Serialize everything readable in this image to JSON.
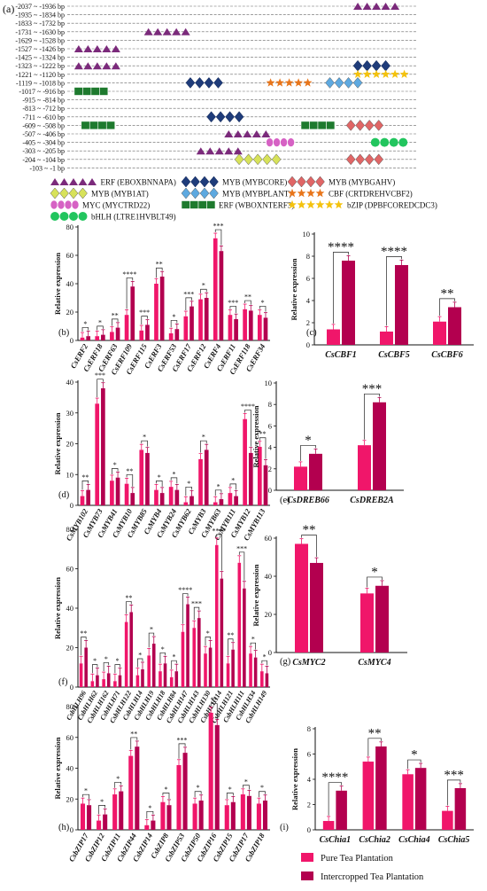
{
  "figure_label": "(a)",
  "promoter": {
    "rows": [
      "-2037 ~ -1936 bp",
      "-1935 ~ -1834 bp",
      "-1833 ~ -1732 bp",
      "-1731 ~ -1630 bp",
      "-1629 ~ -1528 bp",
      "-1527 ~ -1426 bp",
      "-1425 ~ -1324 bp",
      "-1323 ~ -1222 bp",
      "-1221 ~ -1120 bp",
      "-1119 ~ -1018 bp",
      "-1017 ~ -916 bp",
      "-915 ~ -814 bp",
      "-813 ~ -712 bp",
      "-711 ~ -610 bp",
      "-609 ~ -508 bp",
      "-507 ~ -406 bp",
      "-405 ~ -304 bp",
      "-303 ~ -205 bp",
      "-204 ~ -104 bp",
      "-103 ~ -1 bp"
    ],
    "elements": [
      {
        "row": 0,
        "type": "erf",
        "start": 0.82,
        "count": 5
      },
      {
        "row": 3,
        "type": "erf",
        "start": 0.22,
        "count": 5
      },
      {
        "row": 5,
        "type": "erf",
        "start": 0.02,
        "count": 5
      },
      {
        "row": 7,
        "type": "erf",
        "start": 0.02,
        "count": 5
      },
      {
        "row": 7,
        "type": "mybcore",
        "start": 0.82,
        "count": 4
      },
      {
        "row": 8,
        "type": "bzip",
        "start": 0.82,
        "count": 6
      },
      {
        "row": 9,
        "type": "mybcore",
        "start": 0.34,
        "count": 4
      },
      {
        "row": 9,
        "type": "cbf",
        "start": 0.57,
        "count": 5
      },
      {
        "row": 9,
        "type": "mybplant",
        "start": 0.74,
        "count": 4
      },
      {
        "row": 10,
        "type": "wbox",
        "start": 0.02,
        "count": 4
      },
      {
        "row": 13,
        "type": "mybcore",
        "start": 0.4,
        "count": 4
      },
      {
        "row": 14,
        "type": "wbox",
        "start": 0.04,
        "count": 4
      },
      {
        "row": 14,
        "type": "wbox",
        "start": 0.67,
        "count": 4
      },
      {
        "row": 14,
        "type": "mybgahv",
        "start": 0.8,
        "count": 4
      },
      {
        "row": 15,
        "type": "erf",
        "start": 0.45,
        "count": 5
      },
      {
        "row": 16,
        "type": "myc",
        "start": 0.57,
        "count": 4
      },
      {
        "row": 16,
        "type": "bhlh",
        "start": 0.87,
        "count": 4
      },
      {
        "row": 17,
        "type": "erf",
        "start": 0.37,
        "count": 5
      },
      {
        "row": 18,
        "type": "myb1at",
        "start": 0.48,
        "count": 5
      },
      {
        "row": 18,
        "type": "mybgahv",
        "start": 0.8,
        "count": 4
      }
    ],
    "legend": [
      {
        "type": "erf",
        "label": "ERF (EBOXBNNAPA)"
      },
      {
        "type": "mybcore",
        "label": "MYB (MYBCORE)"
      },
      {
        "type": "mybgahv",
        "label": "MYB (MYBGAHV)"
      },
      {
        "type": "myb1at",
        "label": "MYB (MYB1AT)"
      },
      {
        "type": "mybplant",
        "label": "MYB (MYBPLANT)"
      },
      {
        "type": "cbf",
        "label": "CBF (CRTDREHVCBF2)"
      },
      {
        "type": "myc",
        "label": "MYC (MYCTRD22)"
      },
      {
        "type": "wbox",
        "label": "ERF (WBOXNTERF3)"
      },
      {
        "type": "bzip",
        "label": "bZIP (DPBFCOREDCDC3)"
      },
      {
        "type": "bhlh",
        "label": "bHLH (LTRE1HVBLT49)"
      }
    ],
    "colors": {
      "erf": "#7b2a7b",
      "mybcore": "#1f3c7a",
      "mybgahv": "#e06666",
      "myb1at": "#d7e25a",
      "mybplant": "#5ea9e0",
      "cbf": "#e8751a",
      "myc": "#d662c4",
      "wbox": "#1e7a2e",
      "bzip": "#f4c20d",
      "bhlh": "#22c55e"
    }
  },
  "series_colors": {
    "pure": "#f0166a",
    "inter": "#b3004f"
  },
  "legend": {
    "pure": "Pure Tea Plantation",
    "inter": "Intercropped Tea Plantation"
  },
  "ylabel": "Relative expression",
  "chart_data": [
    {
      "id": "b",
      "label": "(b)",
      "type": "bar",
      "ylim": [
        0,
        80
      ],
      "yticks": [
        0,
        20,
        40,
        60,
        80
      ],
      "categories": [
        "CsERF2",
        "CsERF18",
        "CsERF63",
        "CsERF109",
        "CsERF115",
        "CsERF3",
        "CsERF53",
        "CsERF17",
        "CsERF12",
        "CsERF4",
        "CsERF11",
        "CsERF118",
        "CsERF34"
      ],
      "series": [
        {
          "values": [
            2,
            3,
            6,
            18,
            7,
            40,
            5,
            17,
            29,
            72,
            18,
            22,
            18
          ]
        },
        {
          "values": [
            3,
            4,
            9,
            38,
            11,
            45,
            8,
            24,
            30,
            63,
            15,
            21,
            16
          ]
        }
      ],
      "sig": [
        "*",
        "*",
        "**",
        "****",
        "***",
        "**",
        "*",
        "***",
        "*",
        "***",
        "***",
        "**",
        "*"
      ]
    },
    {
      "id": "c",
      "label": "(c)",
      "type": "bar",
      "ylim": [
        0,
        10
      ],
      "yticks": [
        0,
        2,
        4,
        6,
        8,
        10
      ],
      "categories": [
        "CsCBF1",
        "CsCBF5",
        "CsCBF6"
      ],
      "series": [
        {
          "values": [
            1.4,
            1.2,
            2.1
          ]
        },
        {
          "values": [
            7.6,
            7.2,
            3.4
          ]
        }
      ],
      "sig": [
        "****",
        "****",
        "**"
      ]
    },
    {
      "id": "d",
      "label": "(d)",
      "type": "bar",
      "ylim": [
        0,
        40
      ],
      "yticks": [
        0,
        10,
        20,
        30,
        40
      ],
      "categories": [
        "CsMYB102",
        "CsMYB73",
        "CsMYB41",
        "CsMYB10",
        "CsMYB85",
        "CsMYB4",
        "CsMYB24",
        "CsMYB62",
        "CsMYB3",
        "CsMYB63",
        "CsMYB111",
        "CsMYB12",
        "CsMYB113"
      ],
      "series": [
        {
          "values": [
            3,
            33,
            8,
            7,
            18,
            5,
            6,
            1,
            15,
            1,
            4,
            28,
            19
          ]
        },
        {
          "values": [
            5,
            38,
            9,
            4,
            17,
            4,
            5,
            3,
            18,
            2,
            3,
            17,
            13
          ]
        }
      ],
      "sig": [
        "**",
        "***",
        "*",
        "**",
        "*",
        "*",
        "*",
        "*",
        "*",
        "*",
        "*",
        "****",
        "**"
      ]
    },
    {
      "id": "e",
      "label": "(e)",
      "type": "bar",
      "ylim": [
        0,
        10
      ],
      "yticks": [
        0,
        2,
        4,
        6,
        8,
        10
      ],
      "categories": [
        "CsDREB66",
        "CsDREB2A"
      ],
      "series": [
        {
          "values": [
            2.2,
            4.2
          ]
        },
        {
          "values": [
            3.4,
            8.2
          ]
        }
      ],
      "sig": [
        "*",
        "***"
      ]
    },
    {
      "id": "f",
      "label": "(f)",
      "type": "bar",
      "ylim": [
        0,
        80
      ],
      "yticks": [
        0,
        20,
        40,
        60,
        80
      ],
      "categories": [
        "CsbHLH96",
        "CsbHLH62",
        "CsbHLH162",
        "CsbHLH71",
        "CsbHLH122",
        "CsbHLH14",
        "CsbHLH19",
        "CsbHLH18",
        "CsbHLH84",
        "CsbHLH147",
        "CsbHLH143",
        "CsbHLH130",
        "CsbHLH114",
        "CsbHLH121",
        "CsbHLH111",
        "CsbHLH34",
        "CsbHLH149"
      ],
      "series": [
        {
          "values": [
            12,
            3,
            4,
            3,
            33,
            6,
            16,
            8,
            5,
            28,
            30,
            17,
            72,
            12,
            63,
            17,
            8
          ]
        },
        {
          "values": [
            20,
            6,
            7,
            6,
            38,
            9,
            22,
            12,
            8,
            42,
            35,
            20,
            55,
            19,
            50,
            15,
            7
          ]
        }
      ],
      "sig": [
        "**",
        "*",
        "*",
        "*",
        "**",
        "*",
        "*",
        "*",
        "*",
        "****",
        "***",
        "*",
        "****",
        "**",
        "***",
        "*",
        "*"
      ]
    },
    {
      "id": "g",
      "label": "(g)",
      "type": "bar",
      "ylim": [
        0,
        60
      ],
      "yticks": [
        0,
        20,
        40,
        60
      ],
      "categories": [
        "CsMYC2",
        "CsMYC4"
      ],
      "series": [
        {
          "values": [
            57,
            31
          ]
        },
        {
          "values": [
            47,
            35
          ]
        }
      ],
      "sig": [
        "**",
        "*"
      ]
    },
    {
      "id": "h",
      "label": "(h)",
      "type": "bar",
      "ylim": [
        0,
        80
      ],
      "yticks": [
        0,
        20,
        40,
        60,
        80
      ],
      "categories": [
        "CsbZIP17",
        "CsbZIP12",
        "CsbZIP11",
        "CsbZIP44",
        "CsbZIP14",
        "CsbZIP8",
        "CsbZIP53",
        "CsbZIP50",
        "CsbZIP16",
        "CsbZIP15",
        "CsbZIP17",
        "CsbZIP18"
      ],
      "series": [
        {
          "values": [
            17,
            6,
            23,
            48,
            3,
            18,
            42,
            17,
            76,
            16,
            23,
            17
          ]
        },
        {
          "values": [
            16,
            10,
            25,
            54,
            6,
            16,
            50,
            19,
            68,
            18,
            22,
            19
          ]
        }
      ],
      "sig": [
        "*",
        "*",
        "*",
        "**",
        "*",
        "*",
        "***",
        "*",
        "**",
        "*",
        "*",
        "*"
      ]
    },
    {
      "id": "i",
      "label": "(i)",
      "type": "bar",
      "ylim": [
        0,
        8
      ],
      "yticks": [
        0,
        2,
        4,
        6,
        8
      ],
      "categories": [
        "CsChia1",
        "CsChia2",
        "CsChia4",
        "CsChia5"
      ],
      "series": [
        {
          "values": [
            0.7,
            5.4,
            4.4,
            1.5
          ]
        },
        {
          "values": [
            3.1,
            6.6,
            4.9,
            3.3
          ]
        }
      ],
      "sig": [
        "****",
        "**",
        "*",
        "***"
      ]
    }
  ]
}
